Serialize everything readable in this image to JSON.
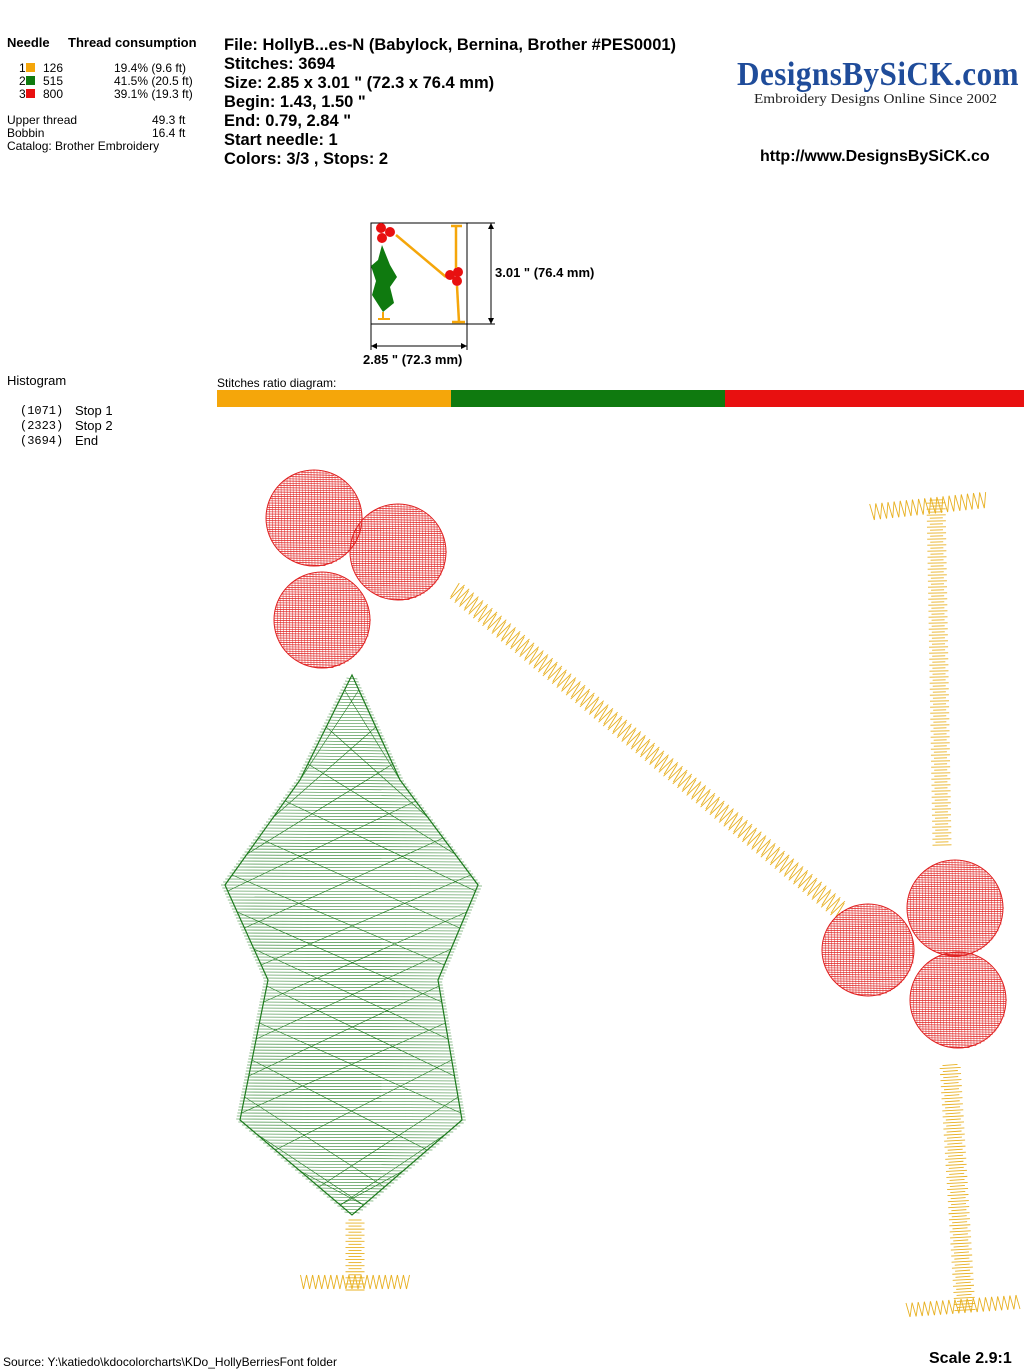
{
  "thread_table": {
    "col_needle": "Needle",
    "col_consumption": "Thread consumption",
    "rows": [
      {
        "n": "1",
        "code": "126",
        "pct": "19.4% (9.6 ft)",
        "color": "#f5a60a"
      },
      {
        "n": "2",
        "code": "515",
        "pct": "41.5% (20.5 ft)",
        "color": "#0f7a0f"
      },
      {
        "n": "3",
        "code": "800",
        "pct": "39.1% (19.3 ft)",
        "color": "#e81010"
      }
    ],
    "upper_label": "Upper thread",
    "upper_val": "49.3 ft",
    "bobbin_label": "Bobbin",
    "bobbin_val": "16.4 ft",
    "catalog": "Catalog: Brother Embroidery"
  },
  "file_info": {
    "file": "File: HollyB...es-N  (Babylock, Bernina, Brother #PES0001)",
    "stitches": "Stitches: 3694",
    "size": "Size: 2.85 x 3.01 \" (72.3 x 76.4 mm)",
    "begin": "Begin: 1.43, 1.50 \"",
    "end": "End: 0.79, 2.84 \"",
    "start_needle": "Start needle: 1",
    "colors": "Colors: 3/3 , Stops: 2"
  },
  "brand": {
    "logo_text": "DesignsBySiCK.com",
    "tagline": "Embroidery Designs Online Since 2002",
    "url": "http://www.DesignsBySiCK.co"
  },
  "thumbnail": {
    "height_label": "3.01 \" (76.4 mm)",
    "width_label": "2.85 \" (72.3 mm)"
  },
  "histogram": {
    "title": "Histogram",
    "items": [
      {
        "count": "(1071)",
        "label": "Stop 1"
      },
      {
        "count": "(2323)",
        "label": "Stop 2"
      },
      {
        "count": "(3694)",
        "label": "End"
      }
    ]
  },
  "ratio": {
    "label": "Stitches ratio diagram:",
    "segments": [
      {
        "color": "#f5a60a",
        "fraction": 0.29
      },
      {
        "color": "#0f7a0f",
        "fraction": 0.34
      },
      {
        "color": "#e81010",
        "fraction": 0.37
      }
    ]
  },
  "footer": {
    "source": "Source: Y:\\katiedo\\kdocolorcharts\\KDo_HollyBerriesFont folder",
    "scale": "Scale 2.9:1"
  }
}
